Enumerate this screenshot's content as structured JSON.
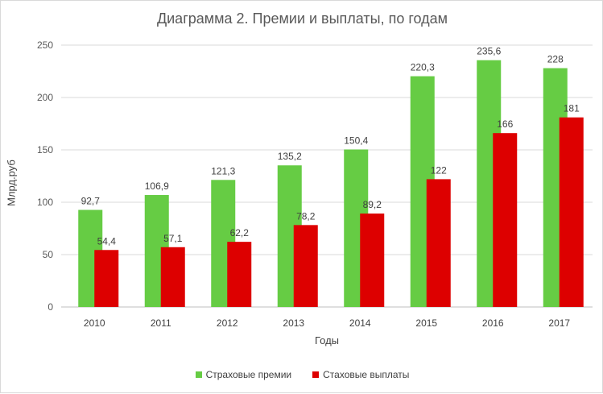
{
  "chart_data": {
    "type": "bar",
    "title": "Диаграмма 2. Премии и выплаты, по годам",
    "xlabel": "Годы",
    "ylabel": "Млрд.руб",
    "ylim": [
      0,
      250
    ],
    "yticks": [
      0,
      50,
      100,
      150,
      200,
      250
    ],
    "grid": true,
    "legend_position": "bottom",
    "categories": [
      "2010",
      "2011",
      "2012",
      "2013",
      "2014",
      "2015",
      "2016",
      "2017"
    ],
    "series": [
      {
        "name": "Страховые  премии",
        "color": "#66cc44",
        "values": [
          92.7,
          106.9,
          121.3,
          135.2,
          150.4,
          220.3,
          235.6,
          228
        ],
        "labels": [
          "92,7",
          "106,9",
          "121,3",
          "135,2",
          "150,4",
          "220,3",
          "235,6",
          "228"
        ]
      },
      {
        "name": "Стаховые  выплаты",
        "color": "#dd0000",
        "values": [
          54.4,
          57.1,
          62.2,
          78.2,
          89.2,
          122,
          166,
          181
        ],
        "labels": [
          "54,4",
          "57,1",
          "62,2",
          "78,2",
          "89,2",
          "122",
          "166",
          "181"
        ]
      }
    ]
  }
}
